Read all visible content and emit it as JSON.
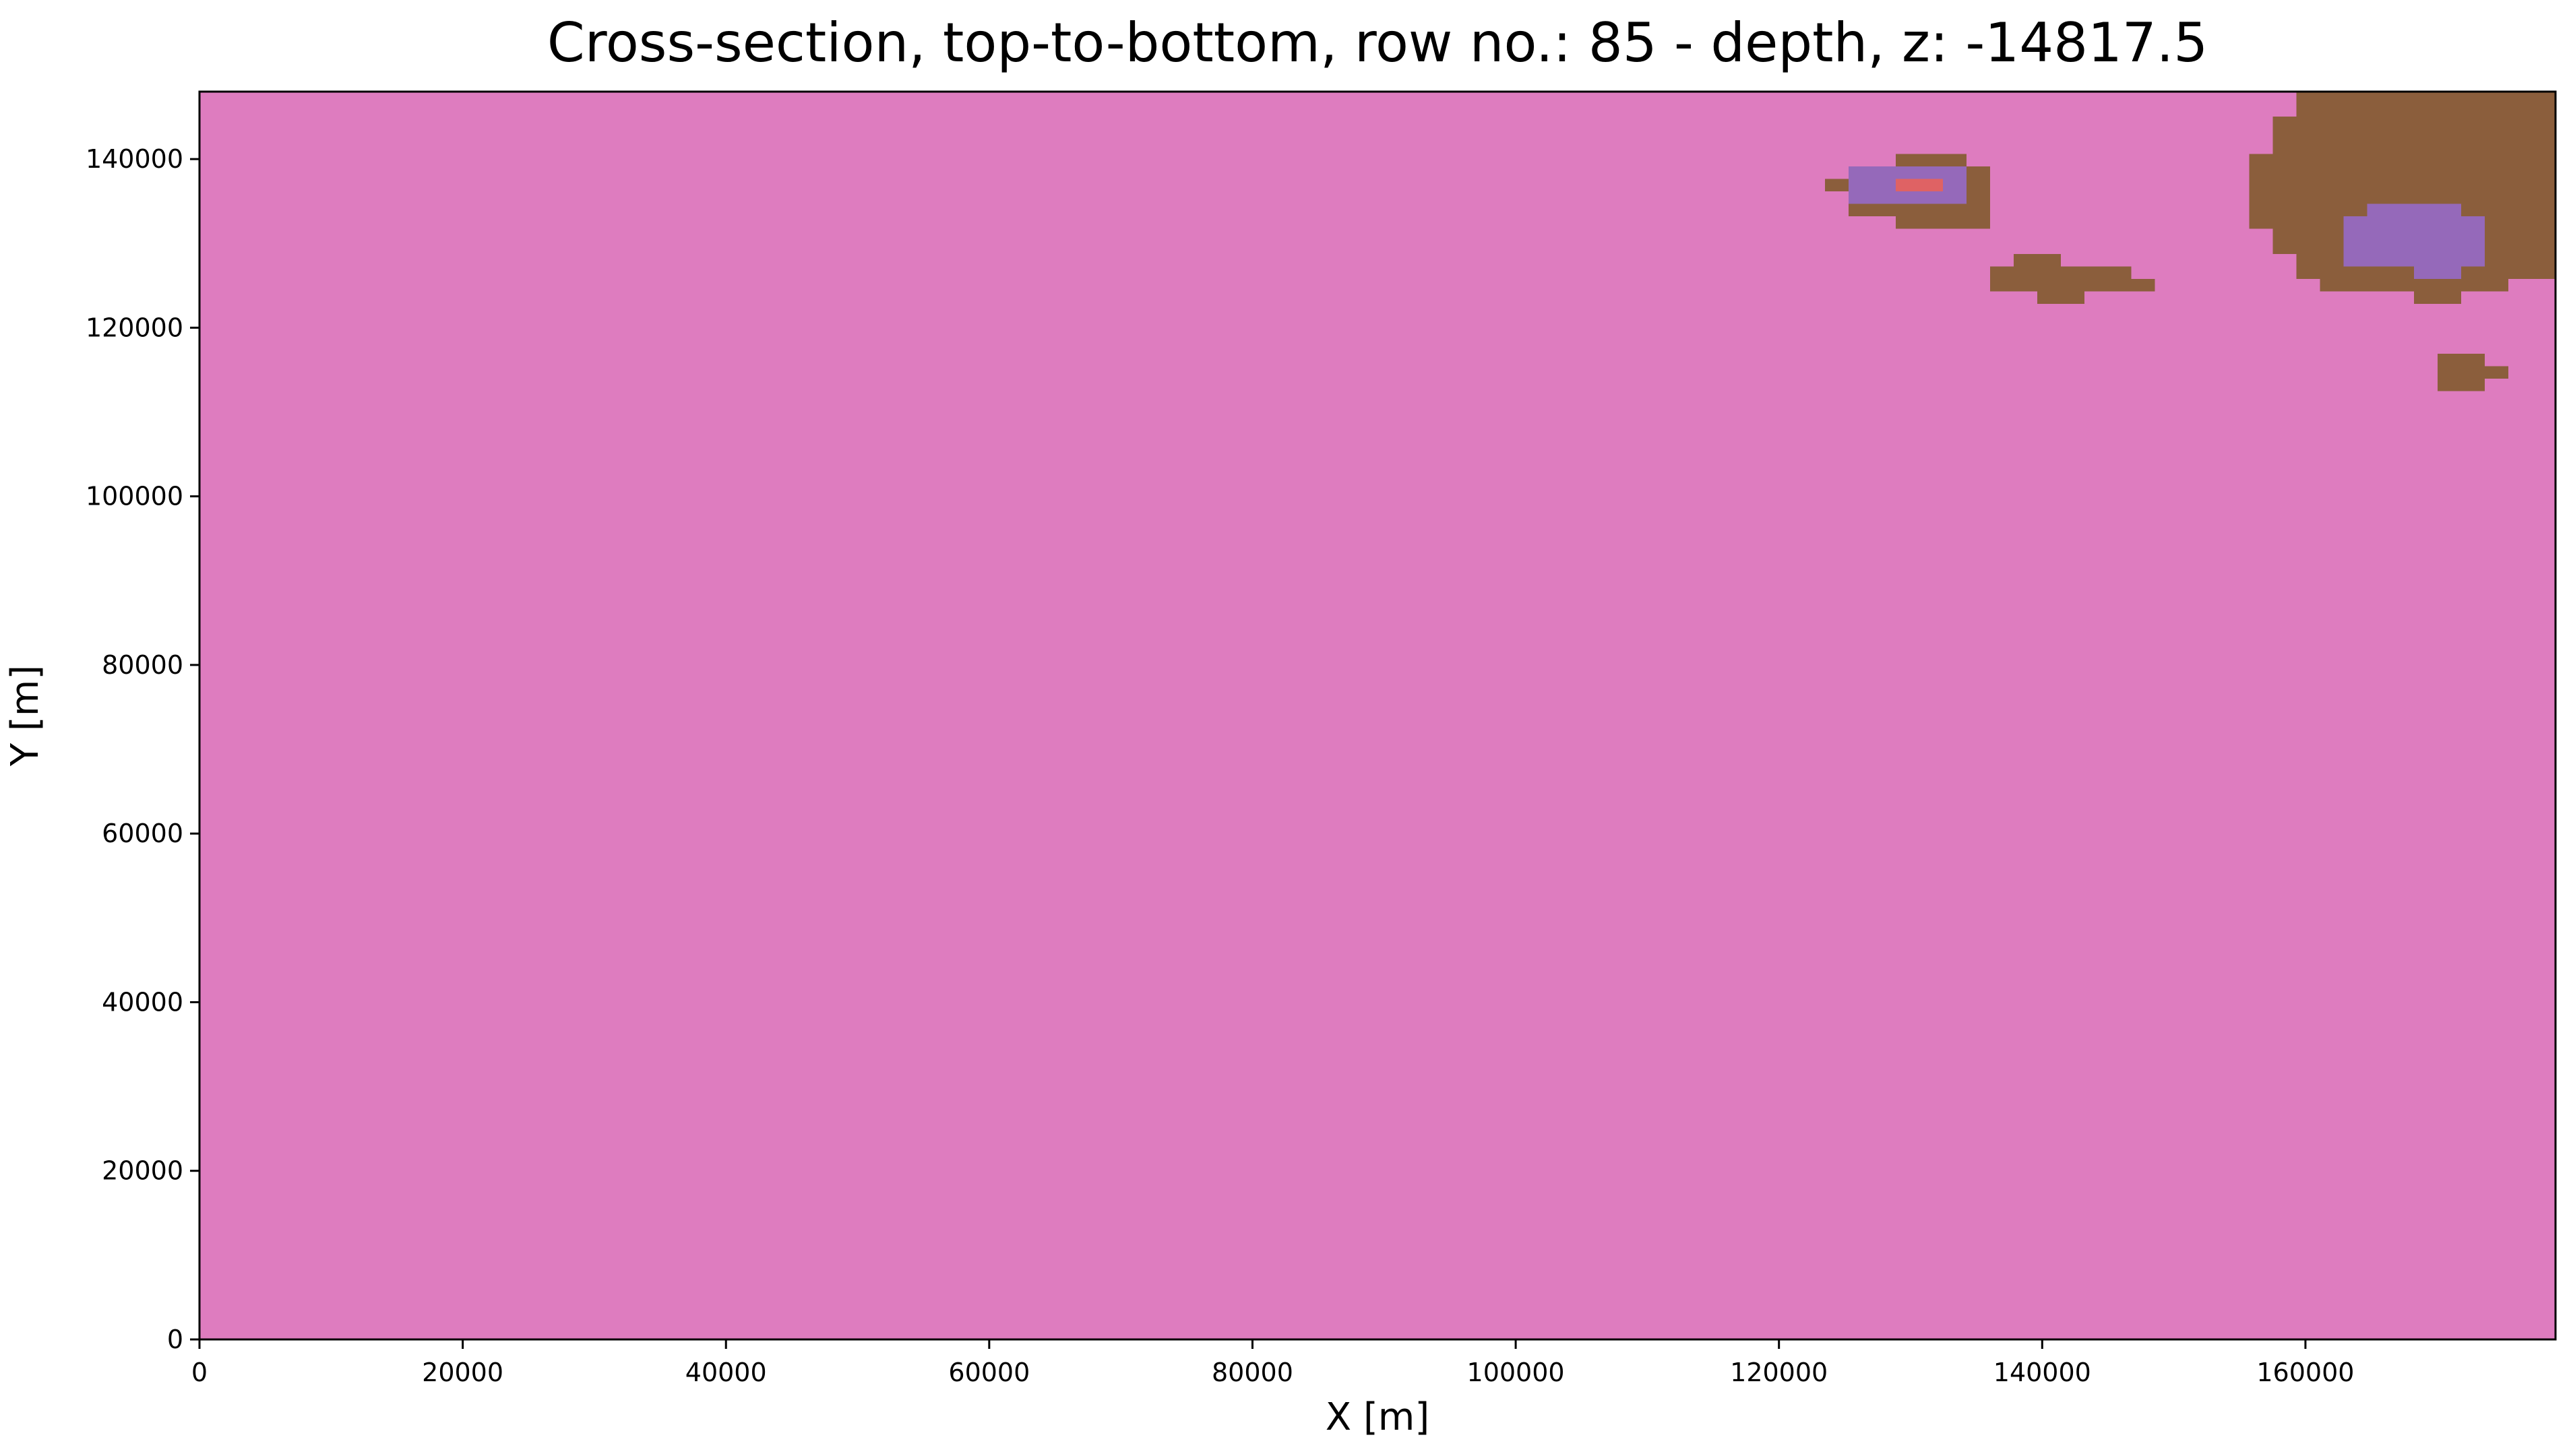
{
  "chart_data": {
    "type": "heatmap",
    "title": "Cross-section, top-to-bottom, row no.: 85 - depth, z: -14817.5",
    "xlabel": "X [m]",
    "ylabel": "Y [m]",
    "xlim": [
      0,
      179000
    ],
    "ylim": [
      0,
      148000
    ],
    "x_ticks": [
      0,
      20000,
      40000,
      60000,
      80000,
      100000,
      120000,
      140000,
      160000
    ],
    "y_ticks": [
      0,
      20000,
      40000,
      60000,
      80000,
      100000,
      120000,
      140000
    ],
    "grid": false,
    "legend": "none",
    "cell_size_x": 1790,
    "cell_size_y": 1480,
    "background_class": "pink",
    "colors": {
      "pink": "#de7cbf",
      "brown": "#8b5e3c",
      "purple": "#9569ba",
      "red": "#df6264"
    },
    "regions": [
      {
        "class": "brown",
        "x": [
          128000,
          135000
        ],
        "y": [
          132000,
          140500
        ]
      },
      {
        "class": "brown",
        "x": [
          126000,
          128000
        ],
        "y": [
          133500,
          139000
        ]
      },
      {
        "class": "brown",
        "x": [
          124000,
          126000
        ],
        "y": [
          135500,
          137000
        ]
      },
      {
        "class": "brown",
        "x": [
          134000,
          136000
        ],
        "y": [
          132000,
          139000
        ]
      },
      {
        "class": "purple",
        "x": [
          126000,
          134000
        ],
        "y": [
          134500,
          139000
        ]
      },
      {
        "class": "red",
        "x": [
          128000,
          133000
        ],
        "y": [
          135500,
          137500
        ]
      },
      {
        "class": "red",
        "x": [
          130000,
          132500
        ],
        "y": [
          137000,
          138000
        ]
      },
      {
        "class": "brown",
        "x": [
          136000,
          146500
        ],
        "y": [
          124500,
          127500
        ]
      },
      {
        "class": "brown",
        "x": [
          138000,
          141500
        ],
        "y": [
          127000,
          129000
        ]
      },
      {
        "class": "brown",
        "x": [
          146000,
          148500
        ],
        "y": [
          124500,
          126000
        ]
      },
      {
        "class": "brown",
        "x": [
          140000,
          143500
        ],
        "y": [
          123000,
          125000
        ]
      },
      {
        "class": "brown",
        "x": [
          159500,
          179000
        ],
        "y": [
          126500,
          148000
        ]
      },
      {
        "class": "brown",
        "x": [
          157500,
          159500
        ],
        "y": [
          129000,
          145000
        ]
      },
      {
        "class": "brown",
        "x": [
          156000,
          157500
        ],
        "y": [
          132000,
          141000
        ]
      },
      {
        "class": "brown",
        "x": [
          161000,
          175000
        ],
        "y": [
          124500,
          128000
        ]
      },
      {
        "class": "brown",
        "x": [
          168000,
          172500
        ],
        "y": [
          123000,
          125000
        ]
      },
      {
        "class": "purple",
        "x": [
          163000,
          174500
        ],
        "y": [
          128000,
          133000
        ]
      },
      {
        "class": "purple",
        "x": [
          165000,
          171500
        ],
        "y": [
          133000,
          134500
        ]
      },
      {
        "class": "purple",
        "x": [
          168500,
          172500
        ],
        "y": [
          126000,
          128500
        ]
      },
      {
        "class": "brown",
        "x": [
          170000,
          173500
        ],
        "y": [
          112500,
          117000
        ]
      },
      {
        "class": "brown",
        "x": [
          173500,
          175500
        ],
        "y": [
          114000,
          115500
        ]
      }
    ]
  }
}
